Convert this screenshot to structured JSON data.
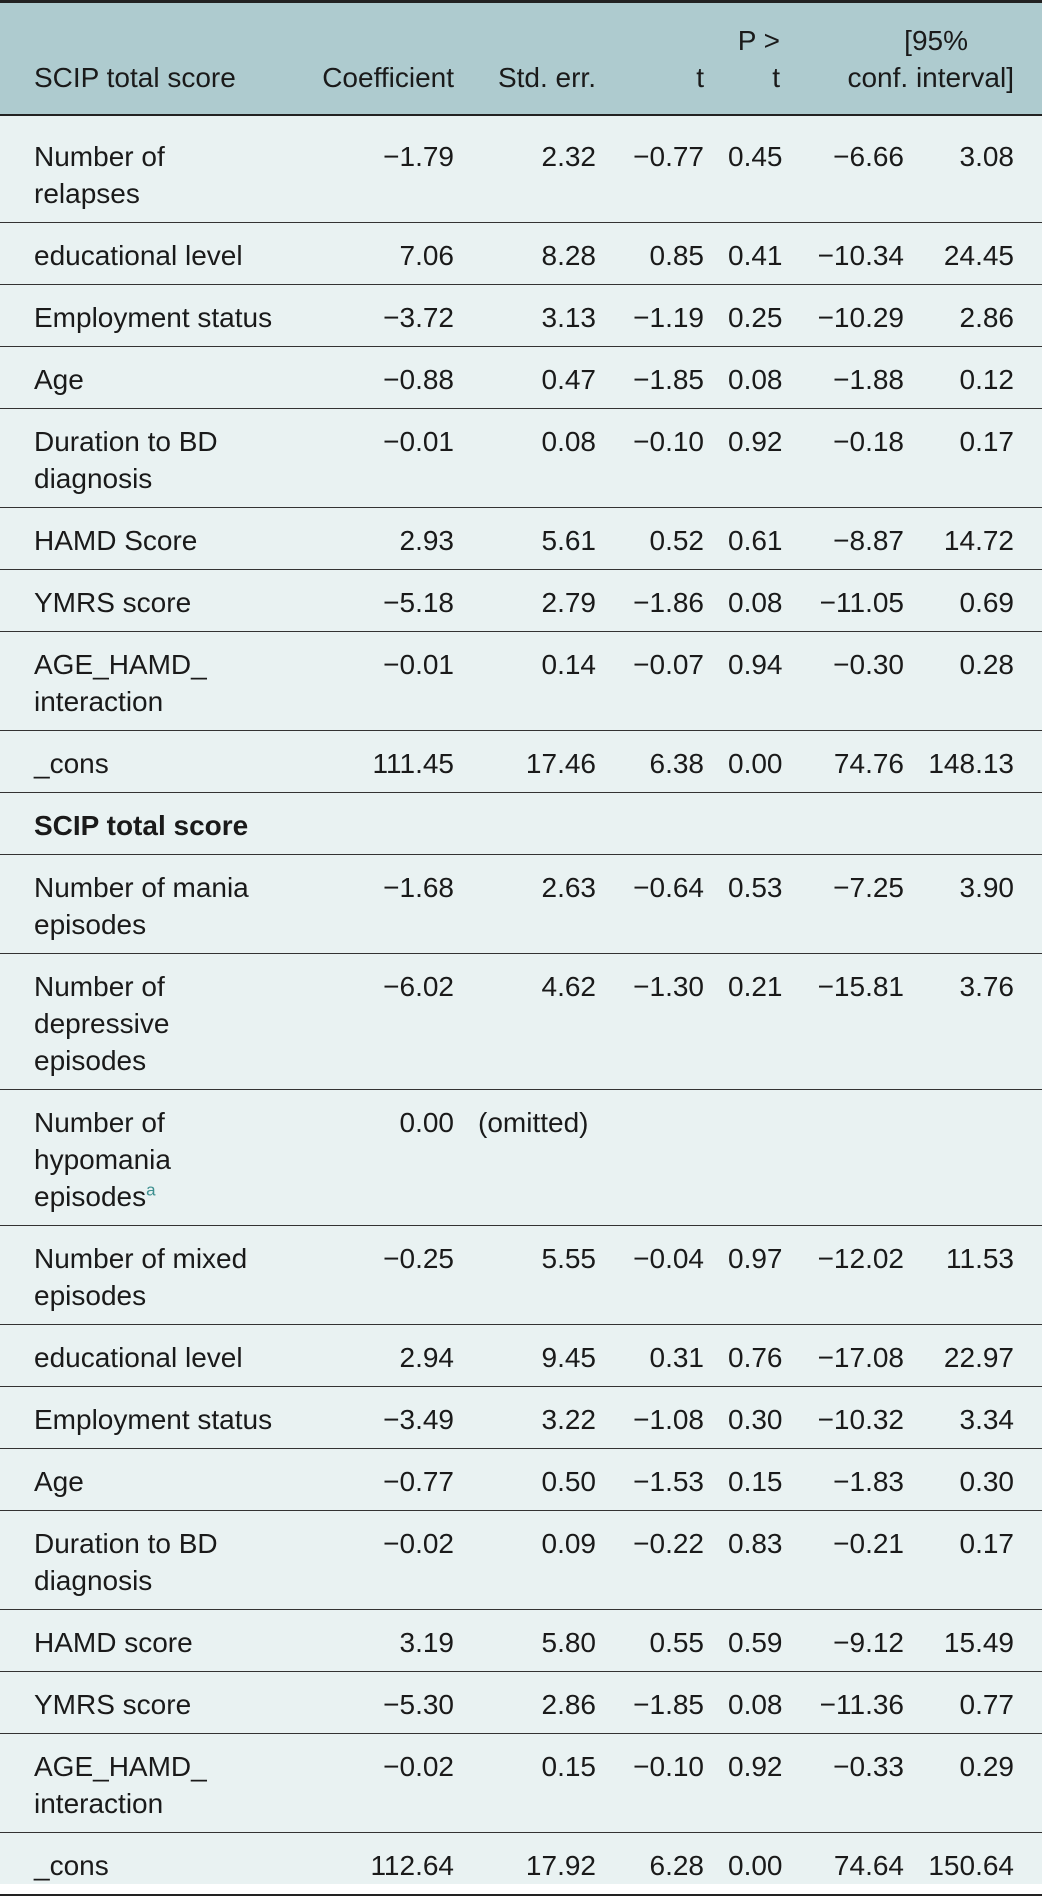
{
  "table": {
    "headers": [
      "SCIP total score",
      "Coefficient",
      "Std. err.",
      "t",
      "P > t",
      "[95%",
      "conf. interval]"
    ],
    "rows": [
      {
        "label": "Number of relapses",
        "cells": [
          "−1.79",
          "2.32",
          "−0.77",
          "0.45",
          "−6.66",
          "3.08"
        ]
      },
      {
        "label": "educational level",
        "cells": [
          "7.06",
          "8.28",
          "0.85",
          "0.41",
          "−10.34",
          "24.45"
        ]
      },
      {
        "label": "Employment status",
        "cells": [
          "−3.72",
          "3.13",
          "−1.19",
          "0.25",
          "−10.29",
          "2.86"
        ]
      },
      {
        "label": "Age",
        "cells": [
          "−0.88",
          "0.47",
          "−1.85",
          "0.08",
          "−1.88",
          "0.12"
        ]
      },
      {
        "label": "Duration to BD diagnosis",
        "cells": [
          "−0.01",
          "0.08",
          "−0.10",
          "0.92",
          "−0.18",
          "0.17"
        ]
      },
      {
        "label": "HAMD Score",
        "cells": [
          "2.93",
          "5.61",
          "0.52",
          "0.61",
          "−8.87",
          "14.72"
        ]
      },
      {
        "label": "YMRS score",
        "cells": [
          "−5.18",
          "2.79",
          "−1.86",
          "0.08",
          "−11.05",
          "0.69"
        ]
      },
      {
        "label": "AGE_HAMD_ interaction",
        "cells": [
          "−0.01",
          "0.14",
          "−0.07",
          "0.94",
          "−0.30",
          "0.28"
        ]
      },
      {
        "label": "_cons",
        "cells": [
          "111.45",
          "17.46",
          "6.38",
          "0.00",
          "74.76",
          "148.13"
        ]
      },
      {
        "label": "SCIP total score",
        "section": true,
        "cells": [
          "",
          "",
          "",
          "",
          "",
          ""
        ]
      },
      {
        "label": "Number of mania episodes",
        "cells": [
          "−1.68",
          "2.63",
          "−0.64",
          "0.53",
          "−7.25",
          "3.90"
        ]
      },
      {
        "label": "Number of depressive episodes",
        "cells": [
          "−6.02",
          "4.62",
          "−1.30",
          "0.21",
          "−15.81",
          "3.76"
        ]
      },
      {
        "label": "Number of hypomania episodes",
        "footnote": "a",
        "cells": [
          "0.00",
          "(omitted)",
          "",
          "",
          "",
          ""
        ]
      },
      {
        "label": "Number of mixed episodes",
        "cells": [
          "−0.25",
          "5.55",
          "−0.04",
          "0.97",
          "−12.02",
          "11.53"
        ]
      },
      {
        "label": "educational level",
        "cells": [
          "2.94",
          "9.45",
          "0.31",
          "0.76",
          "−17.08",
          "22.97"
        ]
      },
      {
        "label": "Employment status",
        "cells": [
          "−3.49",
          "3.22",
          "−1.08",
          "0.30",
          "−10.32",
          "3.34"
        ]
      },
      {
        "label": "Age",
        "cells": [
          "−0.77",
          "0.50",
          "−1.53",
          "0.15",
          "−1.83",
          "0.30"
        ]
      },
      {
        "label": "Duration to BD diagnosis",
        "cells": [
          "−0.02",
          "0.09",
          "−0.22",
          "0.83",
          "−0.21",
          "0.17"
        ]
      },
      {
        "label": "HAMD score",
        "cells": [
          "3.19",
          "5.80",
          "0.55",
          "0.59",
          "−9.12",
          "15.49"
        ]
      },
      {
        "label": "YMRS score",
        "cells": [
          "−5.30",
          "2.86",
          "−1.85",
          "0.08",
          "−11.36",
          "0.77"
        ]
      },
      {
        "label": "AGE_HAMD_ interaction",
        "cells": [
          "−0.02",
          "0.15",
          "−0.10",
          "0.92",
          "−0.33",
          "0.29"
        ]
      },
      {
        "label": "_cons",
        "cells": [
          "112.64",
          "17.92",
          "6.28",
          "0.00",
          "74.64",
          "150.64"
        ]
      }
    ]
  },
  "colors": {
    "background": "#e9f2f2",
    "header_background": "#aecbcf",
    "footnote_marker": "#3d8f8f"
  }
}
